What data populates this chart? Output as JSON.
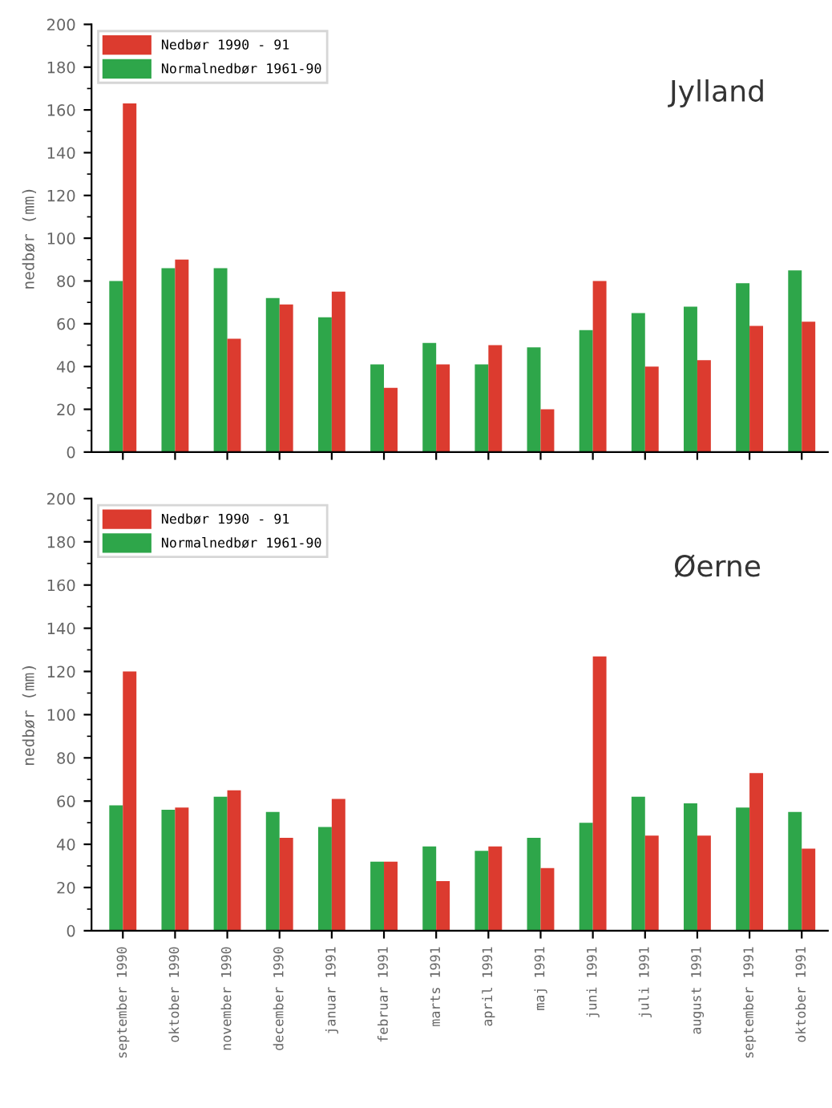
{
  "chart_data": [
    {
      "type": "bar",
      "ylabel": "nedbør (mm)",
      "annotations": [
        "Jylland"
      ],
      "categories": [
        null,
        null,
        null,
        null,
        null,
        null,
        null,
        null,
        null,
        null,
        null,
        null,
        null,
        null
      ],
      "series": [
        {
          "name": "Normalnedbør 1961-90",
          "color": "#2ea64a",
          "values": [
            80,
            86,
            86,
            72,
            63,
            41,
            51,
            41,
            49,
            57,
            65,
            68,
            79,
            85
          ]
        },
        {
          "name": "Nedbør 1990 - 91",
          "color": "#dc3b2f",
          "values": [
            163,
            90,
            53,
            69,
            75,
            30,
            41,
            50,
            20,
            80,
            40,
            43,
            59,
            61
          ]
        }
      ],
      "ylim": [
        0,
        200
      ],
      "yticks": [
        0,
        20,
        40,
        60,
        80,
        100,
        120,
        140,
        160,
        180,
        200
      ],
      "grid": false,
      "legend": "top left",
      "tick_labels": "y"
    },
    {
      "type": "bar",
      "ylabel": "nedbør (mm)",
      "annotations": [
        "Øerne"
      ],
      "categories": [
        "september 1990",
        "oktober 1990",
        "november 1990",
        "december 1990",
        "januar 1991",
        "februar 1991",
        "marts 1991",
        "april 1991",
        "maj 1991",
        "juni 1991",
        "juli 1991",
        "august 1991",
        "september 1991",
        "oktober 1991"
      ],
      "series": [
        {
          "name": "Normalnedbør 1961-90",
          "color": "#2ea64a",
          "values": [
            58,
            56,
            62,
            55,
            48,
            32,
            39,
            37,
            43,
            50,
            62,
            59,
            57,
            55
          ]
        },
        {
          "name": "Nedbør 1990 - 91",
          "color": "#dc3b2f",
          "values": [
            120,
            57,
            65,
            43,
            61,
            32,
            23,
            39,
            29,
            127,
            44,
            44,
            73,
            38
          ]
        }
      ],
      "ylim": [
        0,
        200
      ],
      "yticks": [
        0,
        20,
        40,
        60,
        80,
        100,
        120,
        140,
        160,
        180,
        200
      ],
      "grid": false,
      "legend": "top left"
    }
  ]
}
